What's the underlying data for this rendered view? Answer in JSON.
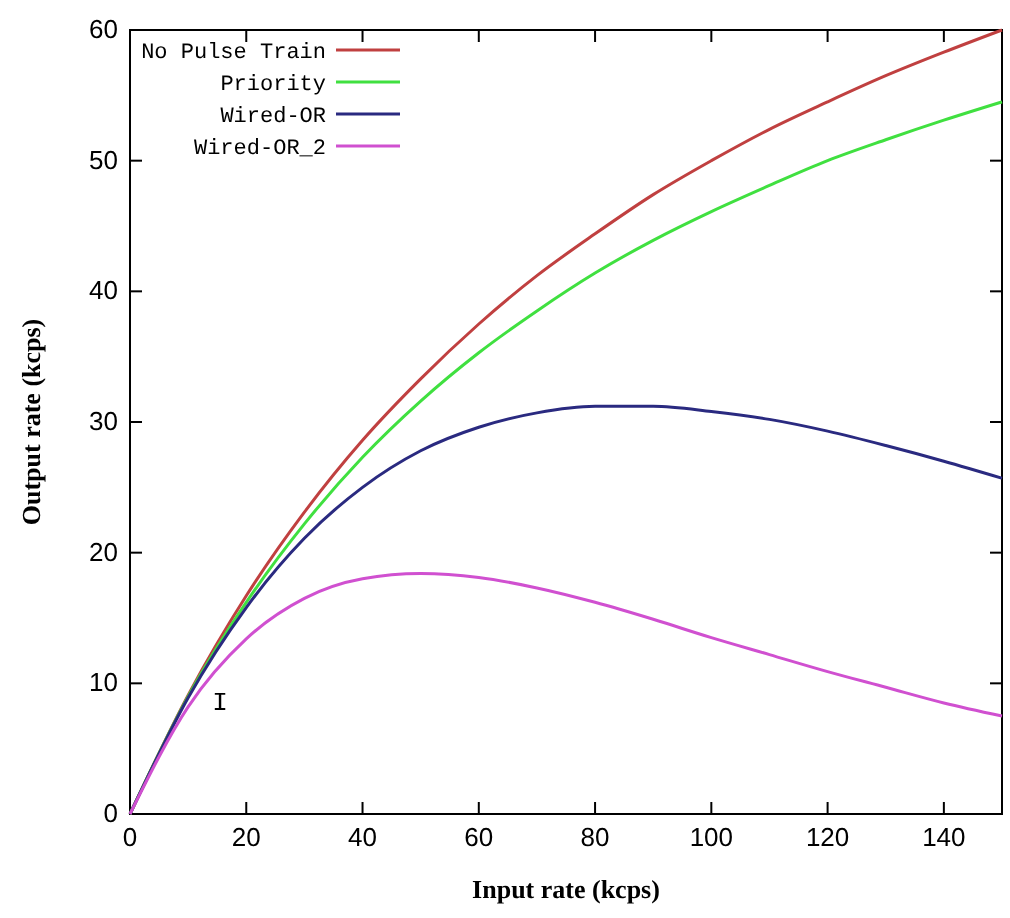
{
  "chart_data": {
    "type": "line",
    "xlabel": "Input rate (kcps)",
    "ylabel": "Output rate (kcps)",
    "x": [
      0,
      10,
      20,
      30,
      40,
      50,
      60,
      70,
      80,
      90,
      100,
      110,
      120,
      130,
      140,
      150
    ],
    "series": [
      {
        "name": "No Pulse Train",
        "color": "#c04040",
        "values": [
          0,
          9.1,
          16.7,
          23.1,
          28.6,
          33.3,
          37.5,
          41.2,
          44.4,
          47.4,
          50,
          52.4,
          54.5,
          56.5,
          58.3,
          60
        ]
      },
      {
        "name": "Priority",
        "color": "#40e040",
        "values": [
          0,
          9.0,
          16.2,
          22.2,
          27.3,
          31.6,
          35.3,
          38.5,
          41.4,
          43.9,
          46.1,
          48.1,
          50.0,
          51.6,
          53.1,
          54.5
        ]
      },
      {
        "name": "Wired-OR",
        "color": "#2a2a80",
        "values": [
          0,
          8.9,
          15.8,
          21.1,
          25.0,
          27.8,
          29.6,
          30.7,
          31.2,
          31.2,
          30.8,
          30.2,
          29.3,
          28.2,
          27.0,
          25.7
        ]
      },
      {
        "name": "Wired-OR_2",
        "color": "#d050d0",
        "values": [
          0,
          8.2,
          13.4,
          16.5,
          18.0,
          18.4,
          18.1,
          17.3,
          16.2,
          14.9,
          13.5,
          12.2,
          10.9,
          9.7,
          8.5,
          7.5
        ]
      }
    ],
    "annotations": [
      "I"
    ],
    "xlim": [
      0,
      150
    ],
    "ylim": [
      0,
      60
    ],
    "xticks": [
      0,
      20,
      40,
      60,
      80,
      100,
      120,
      140
    ],
    "yticks": [
      0,
      10,
      20,
      30,
      40,
      50,
      60
    ],
    "legend": "top left",
    "line_style": "solid",
    "marker": "none"
  }
}
